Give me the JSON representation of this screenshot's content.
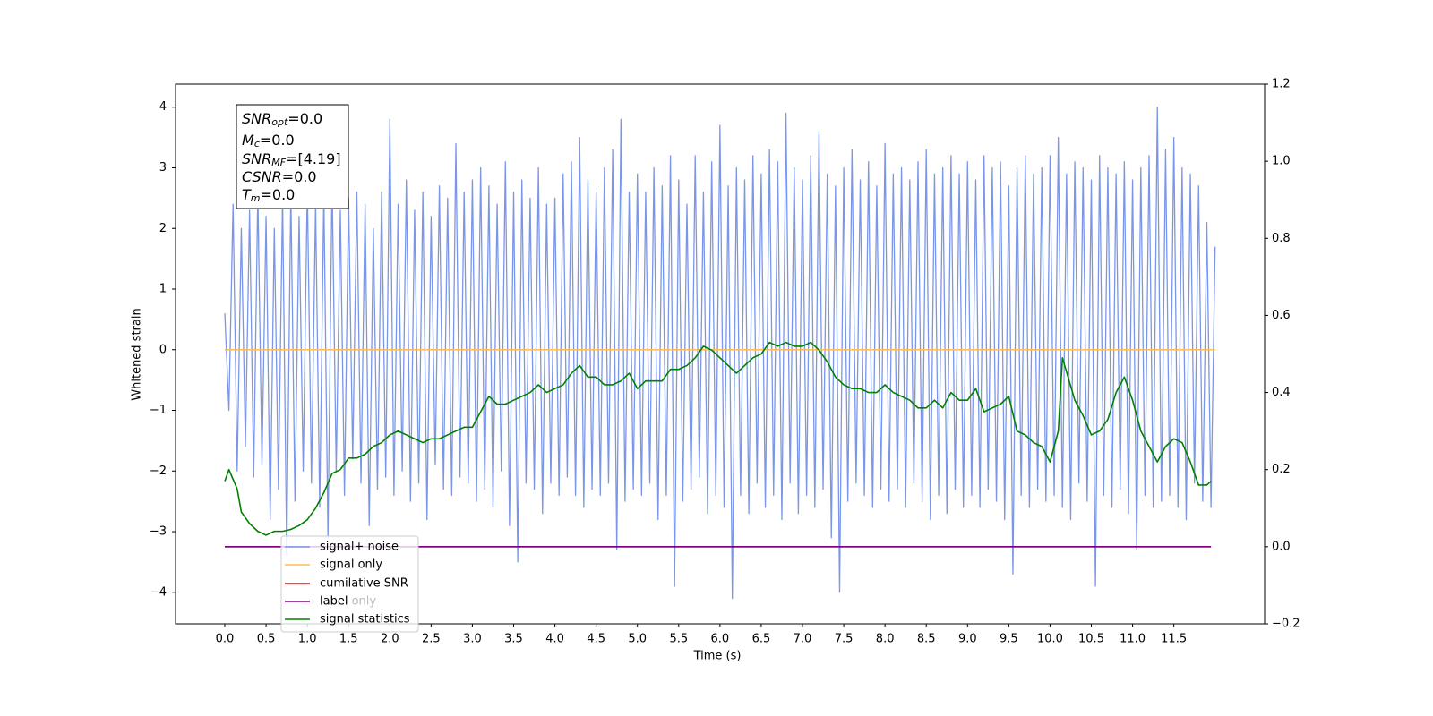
{
  "chart_data": {
    "type": "line",
    "xlabel": "Time (s)",
    "ylabel": "Whitened strain",
    "xlim": [
      -0.597,
      12.6
    ],
    "ylim": [
      -4.52,
      4.38
    ],
    "y2lim": [
      -0.2,
      1.2
    ],
    "xticks": [
      {
        "value": 0,
        "label": "0.0"
      },
      0.5,
      {
        "value": 1,
        "label": "1.0"
      },
      1.5,
      {
        "value": 2,
        "label": "2.0"
      },
      2.5,
      {
        "value": 3,
        "label": "3.0"
      },
      3.5,
      {
        "value": 4,
        "label": "4.0"
      },
      4.5,
      {
        "value": 5,
        "label": "5.0"
      },
      5.5,
      {
        "value": 6,
        "label": "6.0"
      },
      6.5,
      {
        "value": 7,
        "label": "7.0"
      },
      7.5,
      {
        "value": 8,
        "label": "8.0"
      },
      8.5,
      {
        "value": 9,
        "label": "9.0"
      },
      9.5,
      {
        "value": 10,
        "label": "10.0"
      },
      10.5,
      {
        "value": 11,
        "label": "11.0"
      },
      11.5
    ],
    "yticks": [
      {
        "value": -4,
        "label": "−4"
      },
      {
        "value": -3,
        "label": "−3"
      },
      {
        "value": -2,
        "label": "−2"
      },
      {
        "value": -1,
        "label": "−1"
      },
      0,
      1,
      2,
      3,
      4
    ],
    "y2ticks": [
      {
        "value": -0.2,
        "label": "−0.2"
      },
      {
        "value": 0,
        "label": "0.0"
      },
      0.2,
      0.4,
      0.6,
      0.8,
      {
        "value": 1,
        "label": "1.0"
      },
      1.2
    ],
    "grid": false,
    "legend_loc": "lower left",
    "legend_ghost_text": "label only",
    "annotation_lines": [
      {
        "main": "SNR",
        "sub": "opt",
        "rest": "=0.0"
      },
      {
        "main": "M",
        "sub": "c",
        "rest": "=0.0"
      },
      {
        "main": "SNR",
        "sub": "MF",
        "rest": "=[4.19]"
      },
      {
        "main": "CSNR",
        "sub": null,
        "rest": "=0.0"
      },
      {
        "main": "T",
        "sub": "m",
        "rest": "=0.0"
      }
    ],
    "series": [
      {
        "name": "signal+ noise",
        "color": "#7b96e8",
        "axis": "y",
        "x": [
          0,
          0.05,
          0.1,
          0.15,
          0.2,
          0.25,
          0.3,
          0.35,
          0.4,
          0.45,
          0.5,
          0.55,
          0.6,
          0.65,
          0.7,
          0.75,
          0.8,
          0.85,
          0.9,
          0.95,
          1,
          1.05,
          1.1,
          1.15,
          1.2,
          1.25,
          1.3,
          1.35,
          1.4,
          1.45,
          1.5,
          1.55,
          1.6,
          1.65,
          1.7,
          1.75,
          1.8,
          1.85,
          1.9,
          1.95,
          2,
          2.05,
          2.1,
          2.15,
          2.2,
          2.25,
          2.3,
          2.35,
          2.4,
          2.45,
          2.5,
          2.55,
          2.6,
          2.65,
          2.7,
          2.75,
          2.8,
          2.85,
          2.9,
          2.95,
          3,
          3.05,
          3.1,
          3.15,
          3.2,
          3.25,
          3.3,
          3.35,
          3.4,
          3.45,
          3.5,
          3.55,
          3.6,
          3.65,
          3.7,
          3.75,
          3.8,
          3.85,
          3.9,
          3.95,
          4,
          4.05,
          4.1,
          4.15,
          4.2,
          4.25,
          4.3,
          4.35,
          4.4,
          4.45,
          4.5,
          4.55,
          4.6,
          4.65,
          4.7,
          4.75,
          4.8,
          4.85,
          4.9,
          4.95,
          5,
          5.05,
          5.1,
          5.15,
          5.2,
          5.25,
          5.3,
          5.35,
          5.4,
          5.45,
          5.5,
          5.55,
          5.6,
          5.65,
          5.7,
          5.75,
          5.8,
          5.85,
          5.9,
          5.95,
          6,
          6.05,
          6.1,
          6.15,
          6.2,
          6.25,
          6.3,
          6.35,
          6.4,
          6.45,
          6.5,
          6.55,
          6.6,
          6.65,
          6.7,
          6.75,
          6.8,
          6.85,
          6.9,
          6.95,
          7,
          7.05,
          7.1,
          7.15,
          7.2,
          7.25,
          7.3,
          7.35,
          7.4,
          7.45,
          7.5,
          7.55,
          7.6,
          7.65,
          7.7,
          7.75,
          7.8,
          7.85,
          7.9,
          7.95,
          8,
          8.05,
          8.1,
          8.15,
          8.2,
          8.25,
          8.3,
          8.35,
          8.4,
          8.45,
          8.5,
          8.55,
          8.6,
          8.65,
          8.7,
          8.75,
          8.8,
          8.85,
          8.9,
          8.95,
          9,
          9.05,
          9.1,
          9.15,
          9.2,
          9.25,
          9.3,
          9.35,
          9.4,
          9.45,
          9.5,
          9.55,
          9.6,
          9.65,
          9.7,
          9.75,
          9.8,
          9.85,
          9.9,
          9.95,
          10,
          10.05,
          10.1,
          10.15,
          10.2,
          10.25,
          10.3,
          10.35,
          10.4,
          10.45,
          10.5,
          10.55,
          10.6,
          10.65,
          10.7,
          10.75,
          10.8,
          10.85,
          10.9,
          10.95,
          11,
          11.05,
          11.1,
          11.15,
          11.2,
          11.25,
          11.3,
          11.35,
          11.4,
          11.45,
          11.5,
          11.55,
          11.6,
          11.65,
          11.7,
          11.75,
          11.8,
          11.85,
          11.9,
          11.95,
          12
        ],
        "values": [
          0.6,
          -1.0,
          2.4,
          -2.0,
          2.0,
          -1.6,
          2.3,
          -2.1,
          2.6,
          -1.9,
          2.2,
          -2.8,
          2.0,
          -2.3,
          2.5,
          -3.4,
          2.6,
          -2.5,
          2.2,
          -2.0,
          2.7,
          -2.2,
          2.4,
          -2.6,
          2.6,
          -3.1,
          2.8,
          -2.0,
          2.3,
          -2.4,
          2.5,
          -1.8,
          2.6,
          -2.2,
          2.4,
          -2.9,
          2.0,
          -2.3,
          2.6,
          -2.1,
          3.8,
          -2.4,
          2.4,
          -2.0,
          2.8,
          -2.5,
          2.3,
          -2.2,
          2.6,
          -2.8,
          2.2,
          -1.9,
          2.7,
          -2.3,
          2.5,
          -2.4,
          3.4,
          -2.1,
          2.6,
          -2.2,
          2.8,
          -2.5,
          3.0,
          -2.3,
          2.7,
          -2.6,
          2.4,
          -2.0,
          3.1,
          -2.9,
          2.6,
          -3.5,
          2.8,
          -2.2,
          2.5,
          -2.3,
          3.0,
          -2.7,
          2.4,
          -2.2,
          2.5,
          -2.4,
          2.9,
          -2.1,
          3.1,
          -2.4,
          3.5,
          -2.6,
          2.8,
          -2.3,
          2.6,
          -2.4,
          3.0,
          -2.2,
          3.3,
          -3.3,
          3.8,
          -2.5,
          2.6,
          -2.3,
          2.9,
          -2.4,
          2.6,
          -2.2,
          3.0,
          -2.8,
          2.7,
          -2.4,
          3.2,
          -3.9,
          2.8,
          -2.5,
          2.4,
          -2.3,
          3.2,
          -2.1,
          2.6,
          -2.7,
          3.1,
          -2.4,
          3.7,
          -2.6,
          2.7,
          -4.1,
          3.0,
          -2.4,
          2.8,
          -2.7,
          3.2,
          -2.2,
          2.9,
          -2.6,
          3.3,
          -2.4,
          3.1,
          -2.8,
          3.9,
          -2.2,
          3.0,
          -2.7,
          2.8,
          -2.4,
          3.2,
          -2.6,
          3.6,
          -2.3,
          2.9,
          -3.1,
          2.7,
          -4.0,
          3.0,
          -2.5,
          3.3,
          -2.2,
          2.8,
          -2.4,
          3.1,
          -2.6,
          2.7,
          -2.3,
          3.4,
          -2.5,
          2.9,
          -2.3,
          3.0,
          -2.6,
          2.8,
          -2.2,
          3.1,
          -2.5,
          3.3,
          -2.8,
          2.9,
          -2.4,
          3.0,
          -2.7,
          3.2,
          -2.3,
          2.9,
          -2.6,
          3.1,
          -2.4,
          2.8,
          -2.6,
          3.2,
          -2.3,
          3.0,
          -2.5,
          3.1,
          -2.8,
          2.7,
          -3.7,
          3.0,
          -2.4,
          3.2,
          -2.6,
          2.9,
          -2.3,
          3.0,
          -2.5,
          3.2,
          -2.4,
          3.5,
          -2.6,
          2.9,
          -2.8,
          3.1,
          -2.2,
          3.0,
          -2.5,
          2.8,
          -3.9,
          3.2,
          -2.4,
          3.0,
          -2.6,
          2.9,
          -2.3,
          3.1,
          -2.7,
          2.8,
          -3.3,
          3.0,
          -2.4,
          3.2,
          -2.6,
          4.0,
          -2.5,
          3.3,
          -2.4,
          3.5,
          -2.6,
          3.0,
          -2.8,
          2.9,
          -2.2,
          2.7,
          -2.5,
          2.1,
          -2.6,
          1.7
        ]
      },
      {
        "name": "signal only",
        "color": "#ffbb55",
        "axis": "y",
        "x": [
          0,
          12
        ],
        "values": [
          0,
          0
        ]
      },
      {
        "name": "cumilative SNR",
        "color": "#ff0000",
        "axis": "y2",
        "x": [
          0,
          11.95
        ],
        "values": [
          0,
          0
        ]
      },
      {
        "name": "label",
        "color": "#800080",
        "axis": "y2",
        "x": [
          0,
          11.95
        ],
        "values": [
          0,
          0
        ]
      },
      {
        "name": "signal statistics",
        "color": "#008000",
        "axis": "y2",
        "x": [
          0,
          0.05,
          0.15,
          0.2,
          0.3,
          0.4,
          0.5,
          0.6,
          0.7,
          0.8,
          0.9,
          1,
          1.1,
          1.2,
          1.3,
          1.4,
          1.5,
          1.6,
          1.7,
          1.8,
          1.9,
          2,
          2.1,
          2.2,
          2.3,
          2.4,
          2.5,
          2.6,
          2.7,
          2.8,
          2.9,
          3,
          3.1,
          3.2,
          3.3,
          3.4,
          3.5,
          3.6,
          3.7,
          3.8,
          3.9,
          4,
          4.1,
          4.2,
          4.3,
          4.4,
          4.5,
          4.6,
          4.7,
          4.8,
          4.9,
          5,
          5.1,
          5.2,
          5.3,
          5.4,
          5.5,
          5.6,
          5.7,
          5.8,
          5.9,
          6,
          6.1,
          6.2,
          6.3,
          6.4,
          6.5,
          6.6,
          6.7,
          6.8,
          6.9,
          7,
          7.1,
          7.2,
          7.3,
          7.4,
          7.5,
          7.6,
          7.7,
          7.8,
          7.9,
          8,
          8.1,
          8.2,
          8.3,
          8.4,
          8.5,
          8.6,
          8.7,
          8.8,
          8.9,
          9,
          9.1,
          9.2,
          9.3,
          9.4,
          9.5,
          9.6,
          9.7,
          9.8,
          9.9,
          10,
          10.1,
          10.15,
          10.3,
          10.4,
          10.5,
          10.6,
          10.7,
          10.8,
          10.9,
          11,
          11.1,
          11.2,
          11.3,
          11.4,
          11.5,
          11.6,
          11.7,
          11.8,
          11.9,
          11.95
        ],
        "values": [
          0.17,
          0.2,
          0.15,
          0.09,
          0.06,
          0.04,
          0.03,
          0.04,
          0.04,
          0.045,
          0.055,
          0.07,
          0.1,
          0.14,
          0.19,
          0.2,
          0.23,
          0.23,
          0.24,
          0.26,
          0.27,
          0.29,
          0.3,
          0.29,
          0.28,
          0.27,
          0.28,
          0.28,
          0.29,
          0.3,
          0.31,
          0.31,
          0.35,
          0.39,
          0.37,
          0.37,
          0.38,
          0.39,
          0.4,
          0.42,
          0.4,
          0.41,
          0.42,
          0.45,
          0.47,
          0.44,
          0.44,
          0.42,
          0.42,
          0.43,
          0.45,
          0.41,
          0.43,
          0.43,
          0.43,
          0.46,
          0.46,
          0.47,
          0.49,
          0.52,
          0.51,
          0.49,
          0.47,
          0.45,
          0.47,
          0.49,
          0.5,
          0.53,
          0.52,
          0.53,
          0.52,
          0.52,
          0.53,
          0.51,
          0.48,
          0.44,
          0.42,
          0.41,
          0.41,
          0.4,
          0.4,
          0.42,
          0.4,
          0.39,
          0.38,
          0.36,
          0.36,
          0.38,
          0.36,
          0.4,
          0.38,
          0.38,
          0.41,
          0.35,
          0.36,
          0.37,
          0.39,
          0.3,
          0.29,
          0.27,
          0.26,
          0.22,
          0.3,
          0.49,
          0.38,
          0.34,
          0.29,
          0.3,
          0.33,
          0.4,
          0.44,
          0.38,
          0.3,
          0.26,
          0.22,
          0.26,
          0.28,
          0.27,
          0.22,
          0.16,
          0.16,
          0.17
        ]
      }
    ]
  }
}
